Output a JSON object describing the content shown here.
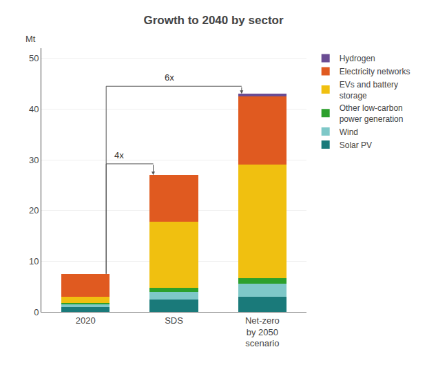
{
  "chart_data": {
    "type": "bar",
    "stacked": true,
    "title": "Growth to 2040 by sector",
    "ylabel": "Mt",
    "categories": [
      "2020",
      "SDS",
      "Net-zero\nby 2050\nscenario"
    ],
    "series": [
      {
        "name": "Solar PV",
        "color": "#1a7a7a",
        "values": [
          1.0,
          2.5,
          3.0
        ]
      },
      {
        "name": "Wind",
        "color": "#7ec8c8",
        "values": [
          0.5,
          1.5,
          2.5
        ]
      },
      {
        "name": "Other low-carbon\npower generation",
        "color": "#2ca02c",
        "values": [
          0.3,
          0.8,
          1.2
        ]
      },
      {
        "name": "EVs and battery\nstorage",
        "color": "#f0c010",
        "values": [
          1.2,
          13.0,
          22.3
        ]
      },
      {
        "name": "Electricity networks",
        "color": "#e05a20",
        "values": [
          4.5,
          9.2,
          13.5
        ]
      },
      {
        "name": "Hydrogen",
        "color": "#6a4c93",
        "values": [
          0.0,
          0.0,
          0.5
        ]
      }
    ],
    "ylim": [
      0,
      52
    ],
    "yticks": [
      0,
      10,
      20,
      30,
      40,
      50
    ],
    "grid": true,
    "legend": "right",
    "annotations": [
      "4x",
      "6x"
    ]
  }
}
